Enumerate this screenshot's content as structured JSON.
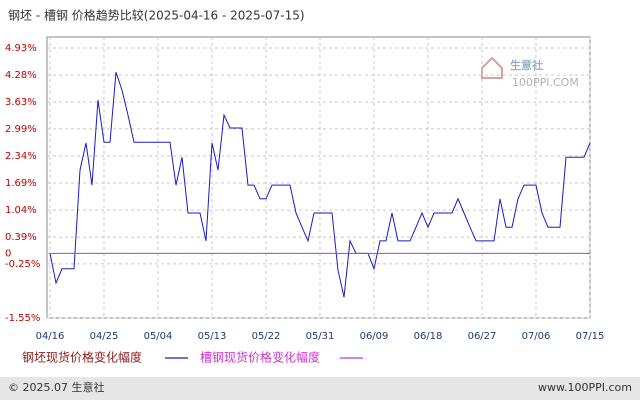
{
  "chart_data": {
    "type": "line",
    "title": "钢坯 - 槽钢 价格趋势比较(2025-04-16 - 2025-07-15)",
    "watermark": {
      "name": "生意社",
      "url": "100PPI.COM"
    },
    "footer": {
      "left": "© 2025.07 生意社",
      "right": "www.100PPI.com"
    },
    "categories": [
      "04/16",
      null,
      null,
      null,
      null,
      null,
      null,
      null,
      null,
      "04/25",
      null,
      null,
      null,
      null,
      null,
      null,
      null,
      null,
      "05/04",
      null,
      null,
      null,
      null,
      null,
      null,
      null,
      null,
      "05/13",
      null,
      null,
      null,
      null,
      null,
      null,
      null,
      null,
      "05/22",
      null,
      null,
      null,
      null,
      null,
      null,
      null,
      null,
      "05/31",
      null,
      null,
      null,
      null,
      null,
      null,
      null,
      null,
      "06/09",
      null,
      null,
      null,
      null,
      null,
      null,
      null,
      null,
      "06/18",
      null,
      null,
      null,
      null,
      null,
      null,
      null,
      null,
      "06/27",
      null,
      null,
      null,
      null,
      null,
      null,
      null,
      null,
      "07/06",
      null,
      null,
      null,
      null,
      null,
      null,
      null,
      null,
      "07/15"
    ],
    "series": [
      {
        "name": "钢坯现货价格变化幅度",
        "color": "#1a1acc",
        "values": [
          0,
          -0.71,
          -0.37,
          -0.37,
          -0.37,
          2.0,
          2.65,
          1.64,
          3.68,
          2.67,
          2.67,
          4.35,
          3.92,
          3.32,
          2.67,
          2.67,
          2.67,
          2.67,
          2.67,
          2.67,
          2.67,
          1.64,
          2.31,
          0.97,
          0.97,
          0.97,
          0.3,
          2.65,
          2.0,
          3.32,
          3.01,
          3.01,
          3.01,
          1.64,
          1.64,
          1.31,
          1.31,
          1.64,
          1.64,
          1.64,
          1.64,
          0.97,
          0.63,
          0.3,
          0.97,
          0.97,
          0.97,
          0.97,
          -0.4,
          -1.05,
          0.3,
          0,
          0,
          0,
          -0.37,
          0.3,
          0.3,
          0.97,
          0.3,
          0.3,
          0.3,
          0.63,
          0.97,
          0.63,
          0.97,
          0.97,
          0.97,
          0.97,
          1.31,
          0.97,
          0.63,
          0.3,
          0.3,
          0.3,
          0.3,
          1.31,
          0.63,
          0.63,
          1.31,
          1.64,
          1.64,
          1.64,
          0.97,
          0.63,
          0.63,
          0.63,
          2.31,
          2.31,
          2.31,
          2.31,
          2.65
        ]
      },
      {
        "name": "槽钢现货价格变化幅度",
        "color": "#cc33cc",
        "values": [
          0,
          0,
          0,
          0,
          0,
          0,
          0,
          0,
          0,
          0,
          0,
          0,
          0,
          0,
          0,
          0,
          0,
          0,
          0,
          0,
          0,
          0,
          0,
          0,
          0,
          0,
          0,
          0,
          0,
          0,
          0,
          0,
          0,
          0,
          0,
          0,
          0,
          0,
          0,
          0,
          0,
          0,
          0,
          0,
          0,
          0,
          0,
          0,
          0,
          0,
          0,
          0,
          0,
          0,
          0,
          0,
          0,
          0,
          0,
          0,
          0,
          0,
          0,
          0,
          0,
          0,
          0,
          0,
          0,
          0,
          0,
          0,
          0,
          0,
          0,
          0,
          0,
          0,
          0,
          0,
          0,
          0,
          0,
          0,
          0,
          0,
          0,
          0,
          0,
          0,
          0
        ]
      }
    ],
    "ylim": [
      -1.55,
      4.93
    ],
    "yticks": [
      {
        "value": 4.93,
        "label": "4.93%"
      },
      {
        "value": 4.28,
        "label": "4.28%"
      },
      {
        "value": 3.63,
        "label": "3.63%"
      },
      {
        "value": 2.99,
        "label": "2.99%"
      },
      {
        "value": 2.34,
        "label": "2.34%"
      },
      {
        "value": 1.69,
        "label": "1.69%"
      },
      {
        "value": 1.04,
        "label": "1.04%"
      },
      {
        "value": 0.39,
        "label": "0.39%"
      },
      {
        "value": -0.25,
        "label": "-0.25%"
      },
      0,
      {
        "value": -1.55,
        "label": "-1.55%"
      }
    ],
    "grid": true
  }
}
